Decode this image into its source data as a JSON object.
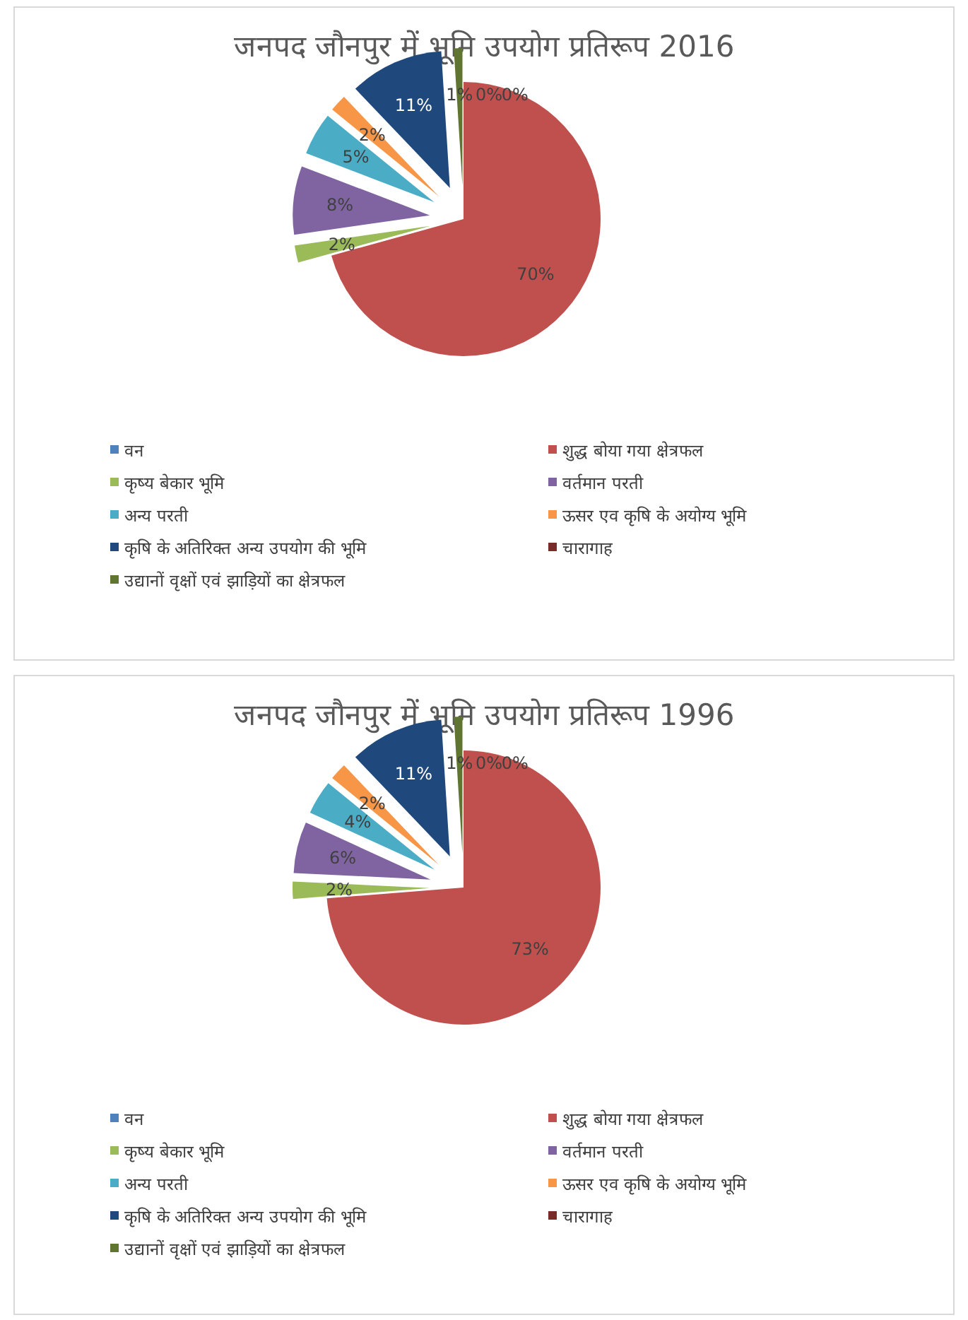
{
  "chart_data": [
    {
      "type": "pie",
      "title": "जनपद जौनपुर में भूमि उपयोग प्रतिरूप 2016",
      "categories": [
        "वन",
        "शुद्ध बोया गया क्षेत्रफल",
        "कृष्य बेकार भूमि",
        "वर्तमान परती",
        "अन्य परती",
        "ऊसर एव कृषि के अयोग्य भूमि",
        "कृषि के अतिरिक्त अन्य उपयोग की भूमि",
        "चारागाह",
        "उद्यानों वृक्षों एवं झाड़ियों का क्षेत्रफल"
      ],
      "values": [
        0,
        70,
        2,
        8,
        5,
        2,
        11,
        0,
        1
      ],
      "value_labels": [
        "0%",
        "70%",
        "2%",
        "8%",
        "5%",
        "2%",
        "11%",
        "0%",
        "1%"
      ],
      "colors": [
        "#4f81bd",
        "#c0504d",
        "#9bbb59",
        "#8064a2",
        "#4bacc6",
        "#f79646",
        "#1f497d",
        "#772c2a",
        "#5f7530"
      ],
      "legend": "bottom"
    },
    {
      "type": "pie",
      "title": "जनपद जौनपुर में भूमि उपयोग प्रतिरूप 1996",
      "categories": [
        "वन",
        "शुद्ध बोया गया क्षेत्रफल",
        "कृष्य बेकार भूमि",
        "वर्तमान परती",
        "अन्य परती",
        "ऊसर एव कृषि के अयोग्य भूमि",
        "कृषि के अतिरिक्त अन्य उपयोग की भूमि",
        "चारागाह",
        "उद्यानों वृक्षों एवं झाड़ियों का क्षेत्रफल"
      ],
      "values": [
        0,
        73,
        2,
        6,
        4,
        2,
        11,
        0,
        1
      ],
      "value_labels": [
        "0%",
        "73%",
        "2%",
        "6%",
        "4%",
        "2%",
        "11%",
        "0%",
        "1%"
      ],
      "colors": [
        "#4f81bd",
        "#c0504d",
        "#9bbb59",
        "#8064a2",
        "#4bacc6",
        "#f79646",
        "#1f497d",
        "#772c2a",
        "#5f7530"
      ],
      "legend": "bottom"
    }
  ]
}
